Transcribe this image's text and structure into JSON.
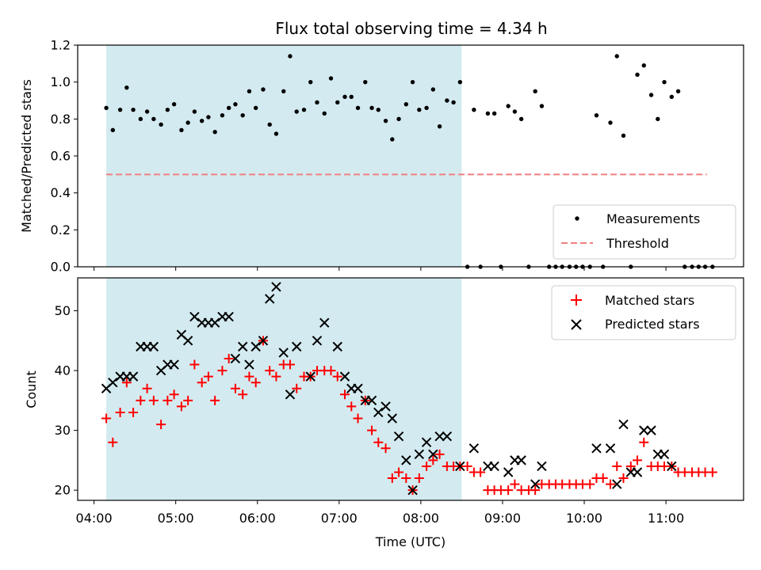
{
  "chart_data": [
    {
      "type": "scatter",
      "title": "Flux total observing time = 4.34 h",
      "ylabel": "Matched/Predicted stars",
      "xlim": [
        3.8,
        11.95
      ],
      "ylim": [
        0,
        1.2
      ],
      "yticks": [
        0,
        0.2,
        0.4,
        0.6,
        0.8,
        1.0,
        1.2
      ],
      "ytick_labels": [
        "0.0",
        "0.2",
        "0.4",
        "0.6",
        "0.8",
        "1.0",
        "1.2"
      ],
      "shaded_span": [
        4.15,
        8.5
      ],
      "shaded_color": "#d3ebf0",
      "threshold": {
        "name": "Threshold",
        "y": 0.5,
        "x": [
          4.15,
          11.5
        ],
        "color": "#f08080"
      },
      "legend": [
        "Measurements",
        "Threshold"
      ],
      "legend_loc": "lower right",
      "series": [
        {
          "name": "Measurements",
          "color": "#000000",
          "marker": "dot",
          "x": [
            4.15,
            4.23,
            4.32,
            4.4,
            4.48,
            4.57,
            4.65,
            4.73,
            4.82,
            4.9,
            4.98,
            5.07,
            5.15,
            5.23,
            5.32,
            5.4,
            5.48,
            5.57,
            5.65,
            5.73,
            5.82,
            5.9,
            5.98,
            6.07,
            6.15,
            6.23,
            6.32,
            6.4,
            6.48,
            6.57,
            6.65,
            6.73,
            6.82,
            6.9,
            6.98,
            7.07,
            7.15,
            7.23,
            7.32,
            7.4,
            7.48,
            7.57,
            7.65,
            7.73,
            7.82,
            7.9,
            7.98,
            8.07,
            8.15,
            8.23,
            8.32,
            8.4,
            8.48,
            8.57,
            8.65,
            8.73,
            8.82,
            8.9,
            8.98,
            9.07,
            9.15,
            9.23,
            9.32,
            9.4,
            9.48,
            9.57,
            9.65,
            9.73,
            9.82,
            9.9,
            9.98,
            10.07,
            10.15,
            10.23,
            10.32,
            10.4,
            10.48,
            10.57,
            10.65,
            10.73,
            10.82,
            10.9,
            10.98,
            11.07,
            11.15,
            11.23,
            11.32,
            11.4,
            11.48,
            11.57
          ],
          "y": [
            0.86,
            0.74,
            0.85,
            0.97,
            0.85,
            0.8,
            0.84,
            0.8,
            0.77,
            0.85,
            0.88,
            0.74,
            0.78,
            0.84,
            0.79,
            0.81,
            0.73,
            0.82,
            0.86,
            0.88,
            0.82,
            0.95,
            0.86,
            0.96,
            0.77,
            0.72,
            0.95,
            1.14,
            0.84,
            0.85,
            1.0,
            0.89,
            0.83,
            1.02,
            0.89,
            0.92,
            0.92,
            0.86,
            1.0,
            0.86,
            0.85,
            0.79,
            0.69,
            0.8,
            0.88,
            1.0,
            0.85,
            0.86,
            0.96,
            0.76,
            0.9,
            0.89,
            1.0,
            0.0,
            0.85,
            0.0,
            0.83,
            0.83,
            0.0,
            0.87,
            0.84,
            0.8,
            0.0,
            0.95,
            0.87,
            0.0,
            0.0,
            0.0,
            0.0,
            0.0,
            0.0,
            0.0,
            0.82,
            0.0,
            0.78,
            1.14,
            0.71,
            0.0,
            1.04,
            1.09,
            0.93,
            0.8,
            1.0,
            0.92,
            0.95,
            0.0,
            0.0,
            0.0,
            0.0,
            0.0
          ]
        }
      ]
    },
    {
      "type": "scatter",
      "xlabel": "Time (UTC)",
      "ylabel": "Count",
      "xlim": [
        3.8,
        11.95
      ],
      "ylim": [
        18.3,
        55.5
      ],
      "yticks": [
        20,
        30,
        40,
        50
      ],
      "ytick_labels": [
        "20",
        "30",
        "40",
        "50"
      ],
      "xticks": [
        4,
        5,
        6,
        7,
        8,
        9,
        10,
        11
      ],
      "xtick_labels": [
        "04:00",
        "05:00",
        "06:00",
        "07:00",
        "08:00",
        "09:00",
        "10:00",
        "11:00"
      ],
      "shaded_span": [
        4.15,
        8.5
      ],
      "shaded_color": "#d3ebf0",
      "legend": [
        "Matched stars",
        "Predicted stars"
      ],
      "legend_loc": "upper right",
      "series": [
        {
          "name": "Matched stars",
          "color": "#ff0000",
          "marker": "plus",
          "x": [
            4.15,
            4.23,
            4.32,
            4.4,
            4.48,
            4.57,
            4.65,
            4.73,
            4.82,
            4.9,
            4.98,
            5.07,
            5.15,
            5.23,
            5.32,
            5.4,
            5.48,
            5.57,
            5.65,
            5.73,
            5.82,
            5.9,
            5.98,
            6.07,
            6.15,
            6.23,
            6.32,
            6.4,
            6.48,
            6.57,
            6.65,
            6.73,
            6.82,
            6.9,
            6.98,
            7.07,
            7.15,
            7.23,
            7.32,
            7.4,
            7.48,
            7.57,
            7.65,
            7.73,
            7.82,
            7.9,
            7.98,
            8.07,
            8.15,
            8.23,
            8.32,
            8.4,
            8.48,
            8.57,
            8.65,
            8.73,
            8.82,
            8.9,
            8.98,
            9.07,
            9.15,
            9.23,
            9.32,
            9.4,
            9.48,
            9.57,
            9.65,
            9.73,
            9.82,
            9.9,
            9.98,
            10.07,
            10.15,
            10.23,
            10.32,
            10.4,
            10.48,
            10.57,
            10.65,
            10.73,
            10.82,
            10.9,
            10.98,
            11.07,
            11.15,
            11.23,
            11.32,
            11.4,
            11.48,
            11.57
          ],
          "y": [
            32,
            28,
            33,
            38,
            33,
            35,
            37,
            35,
            31,
            35,
            36,
            34,
            35,
            41,
            38,
            39,
            35,
            40,
            42,
            37,
            36,
            39,
            38,
            45,
            40,
            39,
            41,
            41,
            37,
            39,
            39,
            40,
            40,
            40,
            39,
            36,
            34,
            32,
            35,
            30,
            28,
            27,
            22,
            23,
            22,
            20,
            22,
            24,
            25,
            26,
            24,
            24,
            24,
            24,
            23,
            23,
            20,
            20,
            20,
            20,
            21,
            20,
            20,
            20,
            21,
            21,
            21,
            21,
            21,
            21,
            21,
            21,
            22,
            22,
            21,
            24,
            22,
            24,
            25,
            28,
            24,
            24,
            24,
            24,
            23,
            23,
            23,
            23,
            23,
            23
          ]
        },
        {
          "name": "Predicted stars",
          "color": "#000000",
          "marker": "x",
          "x": [
            4.15,
            4.23,
            4.32,
            4.4,
            4.48,
            4.57,
            4.65,
            4.73,
            4.82,
            4.9,
            4.98,
            5.07,
            5.15,
            5.23,
            5.32,
            5.4,
            5.48,
            5.57,
            5.65,
            5.73,
            5.82,
            5.9,
            5.98,
            6.07,
            6.15,
            6.23,
            6.32,
            6.4,
            6.48,
            6.65,
            6.73,
            6.82,
            6.98,
            7.07,
            7.15,
            7.23,
            7.32,
            7.4,
            7.48,
            7.57,
            7.65,
            7.73,
            7.82,
            7.9,
            7.98,
            8.07,
            8.15,
            8.23,
            8.32,
            8.48,
            8.65,
            8.82,
            8.9,
            9.07,
            9.15,
            9.23,
            9.4,
            9.48,
            10.15,
            10.32,
            10.4,
            10.48,
            10.57,
            10.65,
            10.73,
            10.82,
            10.9,
            10.98,
            11.07
          ],
          "y": [
            37,
            38,
            39,
            39,
            39,
            44,
            44,
            44,
            40,
            41,
            41,
            46,
            45,
            49,
            48,
            48,
            48,
            49,
            49,
            42,
            44,
            41,
            44,
            45,
            52,
            54,
            43,
            36,
            44,
            39,
            45,
            48,
            44,
            39,
            37,
            37,
            35,
            35,
            33,
            34,
            32,
            29,
            25,
            20,
            26,
            28,
            26,
            29,
            29,
            24,
            27,
            24,
            24,
            23,
            25,
            25,
            21,
            24,
            27,
            27,
            21,
            31,
            23,
            23,
            30,
            30,
            26,
            26,
            24
          ]
        }
      ]
    }
  ]
}
